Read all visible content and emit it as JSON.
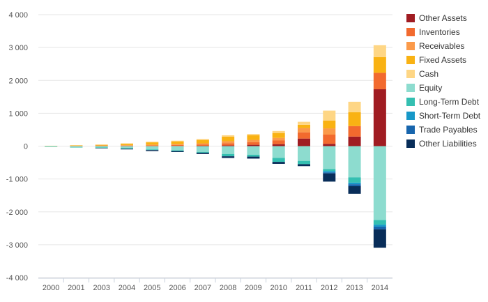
{
  "chart_data": {
    "type": "bar",
    "stacked": true,
    "categories": [
      "2000",
      "2001",
      "2003",
      "2004",
      "2005",
      "2006",
      "2007",
      "2008",
      "2009",
      "2010",
      "2011",
      "2012",
      "2013",
      "2014"
    ],
    "ylim": [
      -4000,
      4000
    ],
    "yticks": [
      4000,
      3000,
      2000,
      1000,
      0,
      -1000,
      -2000,
      -3000,
      -4000
    ],
    "ytick_labels": [
      "4 000",
      "3 000",
      "2 000",
      "1 000",
      "0",
      "-1 000",
      "-2 000",
      "-3 000",
      "-4 000"
    ],
    "grid": true,
    "legend_position": "right",
    "series": [
      {
        "name": "Other Assets",
        "color": "#a01c22",
        "values": [
          0,
          0,
          0,
          0,
          0,
          5,
          10,
          20,
          40,
          60,
          230,
          70,
          290,
          1730
        ]
      },
      {
        "name": "Inventories",
        "color": "#f26a2e",
        "values": [
          2,
          5,
          10,
          15,
          20,
          30,
          40,
          70,
          80,
          110,
          190,
          280,
          320,
          500
        ]
      },
      {
        "name": "Receivables",
        "color": "#fb9a4a",
        "values": [
          3,
          8,
          10,
          15,
          25,
          30,
          35,
          60,
          70,
          80,
          130,
          190,
          0,
          0
        ]
      },
      {
        "name": "Fixed Assets",
        "color": "#f9b213",
        "values": [
          5,
          12,
          20,
          40,
          70,
          80,
          100,
          140,
          140,
          150,
          100,
          240,
          420,
          480
        ]
      },
      {
        "name": "Cash",
        "color": "#fed685",
        "values": [
          2,
          5,
          10,
          15,
          20,
          20,
          35,
          40,
          40,
          60,
          90,
          300,
          320,
          360
        ]
      },
      {
        "name": "Equity",
        "color": "#8ddccf",
        "values": [
          -10,
          -30,
          -40,
          -60,
          -100,
          -130,
          -180,
          -240,
          -260,
          -360,
          -450,
          -700,
          -950,
          -2250
        ]
      },
      {
        "name": "Long-Term Debt",
        "color": "#34bfb1",
        "values": [
          -3,
          -5,
          -15,
          -20,
          -20,
          -20,
          -20,
          -70,
          -60,
          -120,
          -100,
          -60,
          -160,
          -140
        ]
      },
      {
        "name": "Short-Term Debt",
        "color": "#1798c8",
        "values": [
          0,
          0,
          0,
          0,
          0,
          0,
          0,
          0,
          0,
          0,
          0,
          -40,
          -50,
          -60
        ]
      },
      {
        "name": "Trade Payables",
        "color": "#1765ad",
        "values": [
          0,
          0,
          0,
          0,
          0,
          0,
          0,
          0,
          0,
          0,
          0,
          -30,
          -60,
          -80
        ]
      },
      {
        "name": "Other Liabilities",
        "color": "#082d59",
        "values": [
          0,
          0,
          -5,
          -20,
          -30,
          -30,
          -40,
          -50,
          -60,
          -60,
          -60,
          -250,
          -230,
          -560
        ]
      }
    ]
  }
}
